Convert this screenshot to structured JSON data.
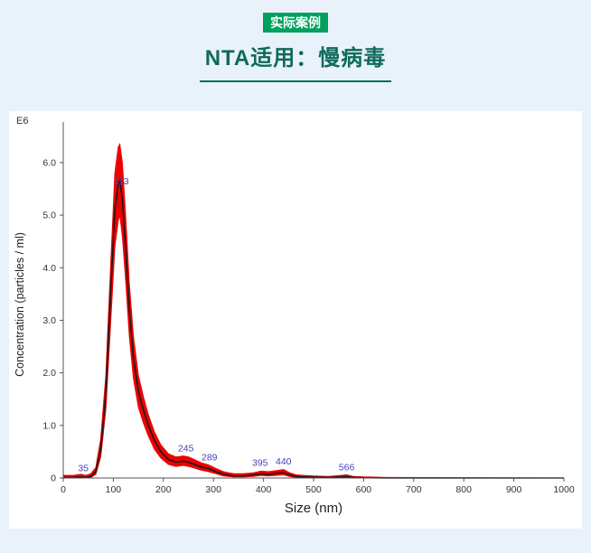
{
  "header": {
    "badge": "实际案例",
    "title": "NTA适用：慢病毒"
  },
  "colors": {
    "page_bg": "#E9F2FA",
    "accent": "#0E6A5B",
    "badge_bg": "#00A15C",
    "badge_text": "#FFFFFF",
    "band": "#EE0000",
    "line": "#1A1A1A",
    "peak_label": "#4444BB",
    "axis": "#555555",
    "tick_text": "#333333",
    "axis_label_text": "#222222"
  },
  "chart_data": {
    "type": "area",
    "title": "",
    "xlabel": "Size (nm)",
    "ylabel": "Concentration (particles / ml)",
    "y_unit_label": "E6",
    "xlim": [
      0,
      1000
    ],
    "ylim": [
      0,
      6.6
    ],
    "grid": false,
    "legend": "none",
    "x_ticks": [
      "0",
      "100",
      "200",
      "300",
      "400",
      "500",
      "600",
      "700",
      "800",
      "900",
      "1000"
    ],
    "y_ticks": [
      "0",
      "1.0",
      "2.0",
      "3.0",
      "4.0",
      "5.0",
      "6.0"
    ],
    "x": [
      0,
      20,
      35,
      45,
      55,
      65,
      75,
      85,
      95,
      103,
      110,
      113,
      118,
      125,
      132,
      140,
      150,
      160,
      170,
      182,
      195,
      210,
      225,
      240,
      250,
      262,
      275,
      290,
      305,
      320,
      340,
      360,
      380,
      395,
      410,
      425,
      440,
      452,
      465,
      480,
      500,
      530,
      555,
      566,
      580,
      600,
      650,
      1000
    ],
    "mean": [
      0.01,
      0.01,
      0.02,
      0.01,
      0.03,
      0.12,
      0.55,
      1.6,
      3.6,
      5.1,
      5.6,
      5.65,
      5.3,
      4.3,
      3.2,
      2.3,
      1.65,
      1.3,
      1.0,
      0.72,
      0.5,
      0.35,
      0.3,
      0.32,
      0.3,
      0.26,
      0.21,
      0.18,
      0.12,
      0.07,
      0.04,
      0.04,
      0.06,
      0.08,
      0.07,
      0.09,
      0.1,
      0.06,
      0.03,
      0.02,
      0.015,
      0.01,
      0.02,
      0.025,
      0.01,
      0.005,
      0,
      0
    ],
    "upper": [
      0.05,
      0.05,
      0.07,
      0.05,
      0.08,
      0.2,
      0.75,
      1.95,
      4.1,
      5.8,
      6.3,
      6.35,
      6.0,
      4.9,
      3.7,
      2.7,
      1.95,
      1.55,
      1.2,
      0.88,
      0.63,
      0.46,
      0.4,
      0.42,
      0.4,
      0.35,
      0.29,
      0.25,
      0.18,
      0.12,
      0.08,
      0.08,
      0.1,
      0.13,
      0.12,
      0.14,
      0.16,
      0.1,
      0.06,
      0.05,
      0.04,
      0.03,
      0.05,
      0.06,
      0.03,
      0.02,
      0.01,
      0
    ],
    "lower": [
      0,
      0,
      0,
      0,
      0.01,
      0.07,
      0.4,
      1.3,
      3.0,
      4.4,
      4.9,
      5.0,
      4.6,
      3.7,
      2.7,
      1.9,
      1.35,
      1.05,
      0.8,
      0.55,
      0.38,
      0.26,
      0.22,
      0.24,
      0.22,
      0.19,
      0.15,
      0.12,
      0.08,
      0.04,
      0.02,
      0.02,
      0.03,
      0.05,
      0.04,
      0.05,
      0.06,
      0.03,
      0.01,
      0.01,
      0,
      0,
      0.01,
      0.01,
      0,
      0,
      0,
      0
    ],
    "peak_labels": [
      {
        "x": 40,
        "y": 0.06,
        "label": "35"
      },
      {
        "x": 116,
        "y": 5.52,
        "label": "113"
      },
      {
        "x": 245,
        "y": 0.44,
        "label": "245"
      },
      {
        "x": 292,
        "y": 0.27,
        "label": "289"
      },
      {
        "x": 393,
        "y": 0.16,
        "label": "395"
      },
      {
        "x": 440,
        "y": 0.19,
        "label": "440"
      },
      {
        "x": 566,
        "y": 0.08,
        "label": "566"
      }
    ]
  }
}
